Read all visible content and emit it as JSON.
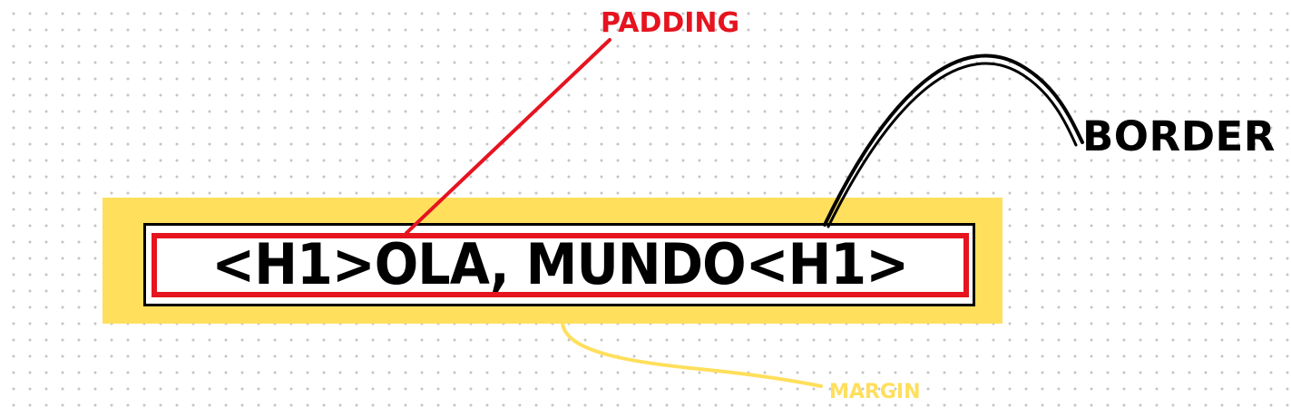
{
  "diagram": {
    "heading_text": "<H1>OLA, MUNDO<H1>",
    "labels": {
      "padding": "PADDING",
      "border": "BORDER",
      "margin": "MARGIN"
    },
    "colors": {
      "margin": "#ffdf5c",
      "border": "#000000",
      "padding": "#e5141f",
      "content": "#ffffff",
      "dots": "#c4c4c4"
    }
  }
}
